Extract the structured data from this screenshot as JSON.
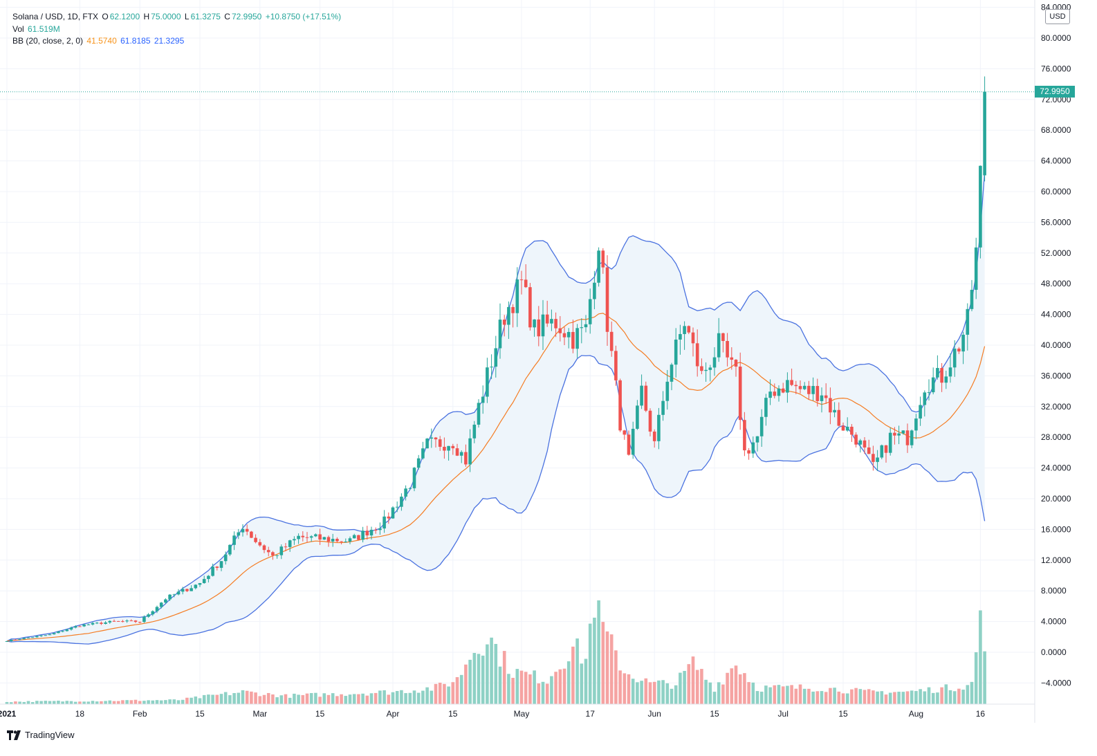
{
  "header": {
    "symbol": "Solana / USD, 1D, FTX",
    "o_label": "O",
    "o_value": "62.1200",
    "h_label": "H",
    "h_value": "75.0000",
    "l_label": "L",
    "l_value": "61.3275",
    "c_label": "C",
    "c_value": "72.9950",
    "change": "+10.8750 (+17.51%)",
    "vol_label": "Vol",
    "vol_value": "61.519M",
    "bb_label": "BB (20, close, 2, 0)",
    "bb_basis": "41.5740",
    "bb_upper": "61.8185",
    "bb_lower": "21.3295"
  },
  "currency_button": "USD",
  "last_price_label": "72.9950",
  "branding": "TradingView",
  "colors": {
    "up": "#26a69a",
    "down": "#ef5350",
    "vol_up": "#8ed1c5",
    "vol_down": "#f5a3a2",
    "bb_band": "#4a72e0",
    "bb_basis": "#f57c22",
    "bb_fill": "#eef5fb",
    "grid": "#f0f3fa",
    "text": "#131722"
  },
  "chart_data": {
    "type": "candlestick",
    "title": "Solana / USD, 1D, FTX",
    "y_axis": {
      "min": -6,
      "max": 84,
      "ticks": [
        -4,
        0,
        4,
        8,
        12,
        16,
        20,
        24,
        28,
        32,
        36,
        40,
        44,
        48,
        52,
        56,
        60,
        64,
        68,
        72,
        76,
        80,
        84
      ],
      "tick_labels": [
        "−4.0000",
        "0.0000",
        "4.0000",
        "8.0000",
        "12.0000",
        "16.0000",
        "20.0000",
        "24.0000",
        "28.0000",
        "32.0000",
        "36.0000",
        "40.0000",
        "44.0000",
        "48.0000",
        "52.0000",
        "56.0000",
        "60.0000",
        "64.0000",
        "68.0000",
        "72.0000",
        "76.0000",
        "80.0000",
        "84.0000"
      ],
      "grid": true
    },
    "x_axis": {
      "start_date": "2021-01-01",
      "end_date": "2021-08-16",
      "ticks": [
        {
          "day": 0,
          "label": "2021"
        },
        {
          "day": 17,
          "label": "18"
        },
        {
          "day": 31,
          "label": "Feb"
        },
        {
          "day": 45,
          "label": "15"
        },
        {
          "day": 59,
          "label": "Mar"
        },
        {
          "day": 73,
          "label": "15"
        },
        {
          "day": 90,
          "label": "Apr"
        },
        {
          "day": 104,
          "label": "15"
        },
        {
          "day": 120,
          "label": "May"
        },
        {
          "day": 136,
          "label": "17"
        },
        {
          "day": 151,
          "label": "Jun"
        },
        {
          "day": 165,
          "label": "15"
        },
        {
          "day": 181,
          "label": "Jul"
        },
        {
          "day": 195,
          "label": "15"
        },
        {
          "day": 212,
          "label": "Aug"
        },
        {
          "day": 227,
          "label": "16"
        }
      ]
    },
    "close_keyframes": [
      [
        0,
        1.5
      ],
      [
        10,
        2.3
      ],
      [
        17,
        3.5
      ],
      [
        25,
        4.0
      ],
      [
        31,
        4.0
      ],
      [
        37,
        7.0
      ],
      [
        45,
        9.0
      ],
      [
        50,
        12.0
      ],
      [
        55,
        16.5
      ],
      [
        58,
        14.5
      ],
      [
        62,
        12.5
      ],
      [
        68,
        15.0
      ],
      [
        73,
        14.8
      ],
      [
        80,
        14.5
      ],
      [
        88,
        17.0
      ],
      [
        94,
        22.0
      ],
      [
        98,
        27.0
      ],
      [
        104,
        27.5
      ],
      [
        107,
        25.0
      ],
      [
        110,
        32.0
      ],
      [
        113,
        38.0
      ],
      [
        116,
        44.0
      ],
      [
        120,
        48.0
      ],
      [
        123,
        42.0
      ],
      [
        128,
        43.0
      ],
      [
        132,
        41.0
      ],
      [
        135,
        42.0
      ],
      [
        138,
        54.0
      ],
      [
        140,
        43.0
      ],
      [
        143,
        30.0
      ],
      [
        145,
        25.0
      ],
      [
        148,
        34.0
      ],
      [
        151,
        27.0
      ],
      [
        154,
        36.0
      ],
      [
        158,
        43.0
      ],
      [
        162,
        36.0
      ],
      [
        166,
        40.0
      ],
      [
        170,
        36.0
      ],
      [
        172,
        26.0
      ],
      [
        175,
        28.0
      ],
      [
        178,
        34.0
      ],
      [
        182,
        35.0
      ],
      [
        186,
        34.0
      ],
      [
        190,
        34.0
      ],
      [
        194,
        30.0
      ],
      [
        198,
        28.0
      ],
      [
        202,
        24.0
      ],
      [
        206,
        28.0
      ],
      [
        210,
        28.0
      ],
      [
        214,
        35.0
      ],
      [
        218,
        36.0
      ],
      [
        222,
        40.0
      ],
      [
        224,
        43.0
      ],
      [
        226,
        52.0
      ],
      [
        227,
        62.0
      ],
      [
        228,
        73.0
      ]
    ],
    "last_candle": {
      "open": 62.12,
      "high": 75.0,
      "low": 61.3275,
      "close": 72.995
    },
    "volume_keyframes": [
      [
        0,
        0.3
      ],
      [
        40,
        0.5
      ],
      [
        55,
        1.5
      ],
      [
        65,
        1.0
      ],
      [
        90,
        1.5
      ],
      [
        100,
        2.0
      ],
      [
        105,
        3.0
      ],
      [
        108,
        6.0
      ],
      [
        112,
        8.5
      ],
      [
        115,
        6.0
      ],
      [
        118,
        4.0
      ],
      [
        126,
        3.0
      ],
      [
        132,
        7.0
      ],
      [
        135,
        5.5
      ],
      [
        137,
        13.0
      ],
      [
        138,
        10.5
      ],
      [
        140,
        8.0
      ],
      [
        144,
        4.0
      ],
      [
        150,
        2.5
      ],
      [
        156,
        2.5
      ],
      [
        160,
        5.0
      ],
      [
        165,
        2.0
      ],
      [
        170,
        5.0
      ],
      [
        175,
        2.0
      ],
      [
        180,
        2.0
      ],
      [
        190,
        2.0
      ],
      [
        200,
        1.5
      ],
      [
        210,
        1.5
      ],
      [
        220,
        2.0
      ],
      [
        225,
        2.5
      ],
      [
        226,
        6.0
      ],
      [
        227,
        12.0
      ],
      [
        228,
        5.5
      ]
    ],
    "volume_max": 22,
    "bollinger": {
      "period": 20,
      "source": "close",
      "mult": 2,
      "offset": 0,
      "last_basis": 41.574,
      "last_upper": 61.8185,
      "last_lower": 21.3295
    },
    "last_price": 72.995
  }
}
